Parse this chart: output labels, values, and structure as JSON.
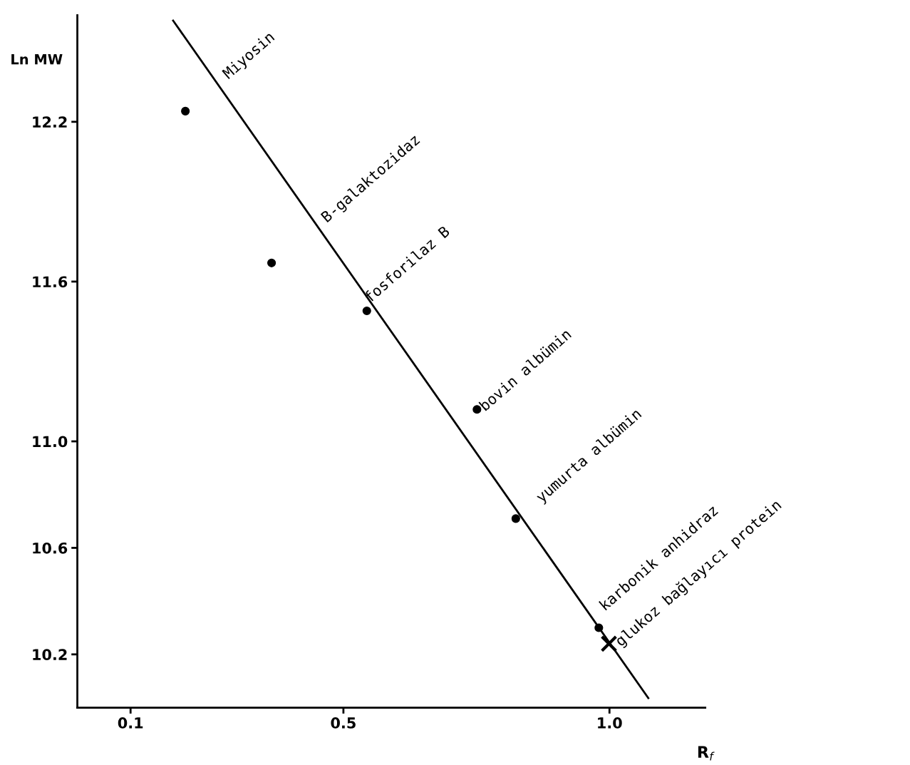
{
  "chart_data": {
    "type": "scatter",
    "xlabel": "R$_{f}$",
    "ylabel": "Ln MW",
    "xlim": [
      0.0,
      1.18
    ],
    "ylim": [
      10.0,
      12.6
    ],
    "xticks": [
      0.1,
      0.5,
      {
        "value": 1.0,
        "label": "1.0"
      }
    ],
    "yticks": [
      10.2,
      10.6,
      {
        "value": 11.0,
        "label": "11.0"
      },
      11.6,
      12.2
    ],
    "grid": false,
    "series": [
      {
        "color": "#000000",
        "marker": "circle",
        "x": [
          0.203,
          0.365,
          0.544,
          0.751,
          0.824,
          0.98
        ],
        "values": [
          12.24,
          11.67,
          11.49,
          11.12,
          10.71,
          10.3
        ]
      },
      {
        "color": "#000000",
        "marker": "cross",
        "x": [
          0.999
        ],
        "values": [
          10.24
        ]
      },
      {
        "type": "line",
        "color": "#000000",
        "marker": "none",
        "line_style": "solid",
        "x": [
          0.18,
          1.073
        ],
        "values": [
          12.58,
          10.036
        ]
      }
    ],
    "annotations": [
      {
        "text": "Miyosin",
        "x": 0.258,
        "y": 12.35
      },
      {
        "text": "B-galaktozidaz",
        "x": 0.454,
        "y": 11.81
      },
      {
        "text": "fosforilaz B",
        "x": 0.544,
        "y": 11.49
      },
      {
        "text": "bovin albümin",
        "x": 0.751,
        "y": 11.12
      },
      {
        "text": "yumurta albümin",
        "x": 0.824,
        "y": 10.71
      },
      {
        "text": "karbonik anhidraz",
        "x": 0.98,
        "y": 10.3
      },
      {
        "text": "glukoz bağlayıcı protein",
        "x": 0.999,
        "y": 10.24
      }
    ]
  }
}
